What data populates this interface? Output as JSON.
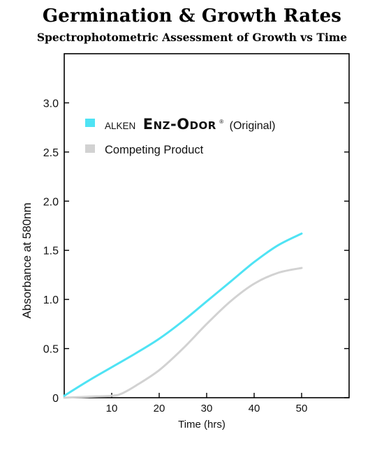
{
  "chart_data": {
    "type": "line",
    "title": "Germination & Growth Rates",
    "subtitle": "Spectrophotometric Assessment of Growth vs Time",
    "xlabel": "Time (hrs)",
    "ylabel": "Absorbance at 580nm",
    "xlim": [
      0,
      60
    ],
    "ylim": [
      0,
      3.5
    ],
    "x_ticks": [
      10,
      20,
      30,
      40,
      50
    ],
    "y_ticks": [
      0,
      0.5,
      1.0,
      1.5,
      2.0,
      2.5,
      3.0
    ],
    "y_tick_labels": [
      "0",
      "0.5",
      "1.0",
      "1.5",
      "2.0",
      "2.5",
      "3.0"
    ],
    "grid": false,
    "legend_position": "top-left",
    "series": [
      {
        "name": "ALKEN ENZ-ODOR® (Original)",
        "legend_parts": {
          "brand": "ALKEN",
          "product": "Enz-Odor",
          "reg": "®",
          "suffix": "(Original)"
        },
        "color": "#4fe3f4",
        "x": [
          0,
          5,
          10,
          15,
          20,
          25,
          30,
          35,
          40,
          45,
          50
        ],
        "y": [
          0.02,
          0.17,
          0.31,
          0.45,
          0.6,
          0.78,
          0.98,
          1.18,
          1.38,
          1.55,
          1.67
        ]
      },
      {
        "name": "Competing Product",
        "color": "#d2d2d2",
        "x": [
          0,
          5,
          10,
          12,
          15,
          20,
          25,
          30,
          35,
          40,
          45,
          50
        ],
        "y": [
          0.0,
          0.01,
          0.02,
          0.04,
          0.12,
          0.28,
          0.5,
          0.75,
          0.98,
          1.16,
          1.27,
          1.32
        ]
      }
    ]
  }
}
